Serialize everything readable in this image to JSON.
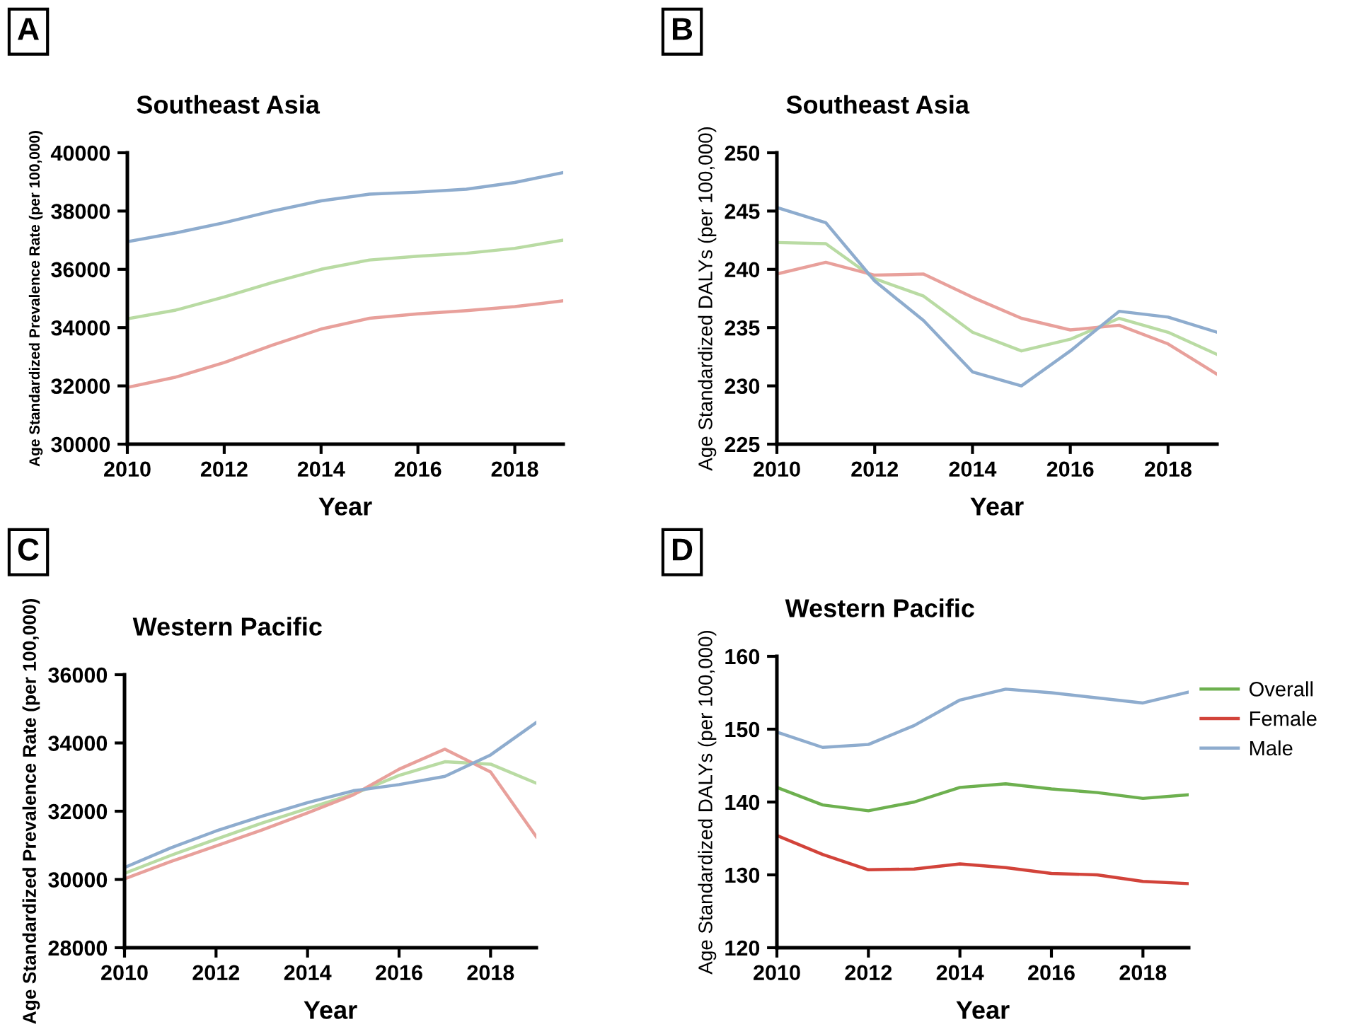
{
  "chart_data": [
    {
      "type": "line",
      "title": "Southeast Asia",
      "annotations": [
        "A"
      ],
      "xlabel": "Year",
      "ylabel": "Age Standardized Prevalence Rate (per 100,000)",
      "x": [
        2010,
        2011,
        2012,
        2013,
        2014,
        2015,
        2016,
        2017,
        2018,
        2019
      ],
      "xlim": [
        2010,
        2019
      ],
      "xticks": [
        2010,
        2012,
        2014,
        2016,
        2018
      ],
      "ylim": [
        30000,
        40000
      ],
      "yticks": [
        30000,
        32000,
        34000,
        36000,
        38000,
        40000
      ],
      "grid": false,
      "legend": false,
      "series": [
        {
          "color": "#b9dba3",
          "values": [
            34300,
            34600,
            35050,
            35550,
            36000,
            36320,
            36450,
            36550,
            36720,
            37000
          ]
        },
        {
          "color": "#e8a09b",
          "values": [
            31950,
            32300,
            32800,
            33400,
            33950,
            34320,
            34470,
            34580,
            34720,
            34920
          ]
        },
        {
          "color": "#8eacce",
          "values": [
            36950,
            37250,
            37600,
            38000,
            38350,
            38580,
            38650,
            38750,
            38980,
            39320
          ]
        }
      ]
    },
    {
      "type": "line",
      "title": "Southeast Asia",
      "annotations": [
        "B"
      ],
      "xlabel": "Year",
      "ylabel": "Age Standardized DALYs (per 100,000)",
      "x": [
        2010,
        2011,
        2012,
        2013,
        2014,
        2015,
        2016,
        2017,
        2018,
        2019
      ],
      "xlim": [
        2010,
        2019
      ],
      "xticks": [
        2010,
        2012,
        2014,
        2016,
        2018
      ],
      "ylim": [
        225,
        250
      ],
      "yticks": [
        225,
        230,
        235,
        240,
        245,
        250
      ],
      "grid": false,
      "legend": false,
      "series": [
        {
          "color": "#b9dba3",
          "values": [
            242.3,
            242.2,
            239.2,
            237.7,
            234.6,
            233.0,
            234.0,
            235.8,
            234.6,
            232.7
          ]
        },
        {
          "color": "#e8a09b",
          "values": [
            239.6,
            240.6,
            239.5,
            239.6,
            237.6,
            235.8,
            234.8,
            235.2,
            233.6,
            231.0
          ]
        },
        {
          "color": "#8eacce",
          "values": [
            245.3,
            244.0,
            239.0,
            235.6,
            231.2,
            230.0,
            233.0,
            236.4,
            235.9,
            234.6
          ]
        }
      ]
    },
    {
      "type": "line",
      "title": "Western Pacific",
      "annotations": [
        "C"
      ],
      "xlabel": "Year",
      "ylabel": "Age Standardized Prevalence Rate (per 100,000)",
      "x": [
        2010,
        2011,
        2012,
        2013,
        2014,
        2015,
        2016,
        2017,
        2018,
        2019
      ],
      "xlim": [
        2010,
        2019
      ],
      "xticks": [
        2010,
        2012,
        2014,
        2016,
        2018
      ],
      "ylim": [
        28000,
        36000
      ],
      "yticks": [
        28000,
        30000,
        32000,
        34000,
        36000
      ],
      "grid": false,
      "legend": false,
      "series": [
        {
          "color": "#b9dba3",
          "values": [
            30180,
            30700,
            31180,
            31650,
            32080,
            32500,
            33050,
            33450,
            33380,
            32820
          ]
        },
        {
          "color": "#e8a09b",
          "values": [
            30020,
            30520,
            30980,
            31450,
            31950,
            32480,
            33230,
            33820,
            33150,
            31250
          ]
        },
        {
          "color": "#8eacce",
          "values": [
            30350,
            30920,
            31420,
            31850,
            32250,
            32600,
            32780,
            33020,
            33650,
            34600
          ]
        }
      ]
    },
    {
      "type": "line",
      "title": "Western Pacific",
      "annotations": [
        "D"
      ],
      "xlabel": "Year",
      "ylabel": "Age Standardized DALYs (per 100,000)",
      "x": [
        2010,
        2011,
        2012,
        2013,
        2014,
        2015,
        2016,
        2017,
        2018,
        2019
      ],
      "xlim": [
        2010,
        2019
      ],
      "xticks": [
        2010,
        2012,
        2014,
        2016,
        2018
      ],
      "ylim": [
        120,
        160
      ],
      "yticks": [
        120,
        130,
        140,
        150,
        160
      ],
      "grid": false,
      "legend": "right",
      "series": [
        {
          "name": "Overall",
          "color": "#6db04f",
          "values": [
            142.0,
            139.6,
            138.8,
            140.0,
            142.0,
            142.5,
            141.8,
            141.3,
            140.5,
            141.0
          ]
        },
        {
          "name": "Female",
          "color": "#d2433a",
          "values": [
            135.4,
            132.8,
            130.7,
            130.8,
            131.5,
            131.0,
            130.2,
            130.0,
            129.1,
            128.8
          ]
        },
        {
          "name": "Male",
          "color": "#8eacce",
          "values": [
            149.6,
            147.5,
            147.9,
            150.5,
            154.0,
            155.5,
            155.0,
            154.3,
            153.6,
            155.1
          ]
        }
      ]
    }
  ]
}
